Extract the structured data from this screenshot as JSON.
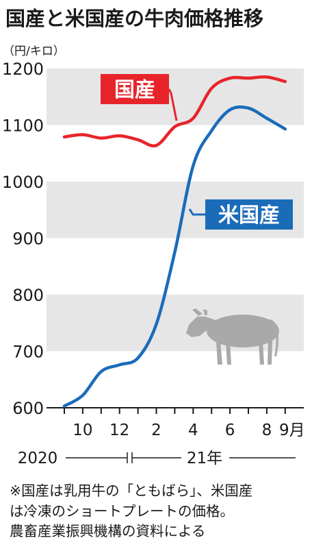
{
  "chart_data": {
    "type": "line",
    "title": "国産と米国産の牛肉価格推移",
    "unit_label": "（円/キロ）",
    "ylim": [
      600,
      1200
    ],
    "y_ticks": [
      600,
      700,
      800,
      900,
      1000,
      1100,
      1200
    ],
    "y_tick_labels": [
      "600",
      "700",
      "800",
      "900",
      "1000",
      "1100",
      "1200"
    ],
    "grid": "alternating horizontal bands",
    "x": [
      "2020-09",
      "2020-10",
      "2020-11",
      "2020-12",
      "2021-01",
      "2021-02",
      "2021-03",
      "2021-04",
      "2021-05",
      "2021-06",
      "2021-07",
      "2021-08",
      "2021-09"
    ],
    "x_tick_labels": [
      {
        "at": "2020-10",
        "label": "10"
      },
      {
        "at": "2020-12",
        "label": "12"
      },
      {
        "at": "2021-02",
        "label": "2"
      },
      {
        "at": "2021-04",
        "label": "4"
      },
      {
        "at": "2021-06",
        "label": "6"
      },
      {
        "at": "2021-08",
        "label": "8"
      },
      {
        "at": "2021-09",
        "label": "9月"
      }
    ],
    "year_labels": [
      "2020",
      "21年"
    ],
    "series": [
      {
        "name": "国産",
        "color": "#e8242b",
        "values": [
          1079,
          1083,
          1077,
          1081,
          1074,
          1064,
          1097,
          1112,
          1165,
          1183,
          1183,
          1185,
          1177
        ]
      },
      {
        "name": "米国産",
        "color": "#1a6cb9",
        "values": [
          603,
          622,
          664,
          676,
          688,
          748,
          875,
          1028,
          1090,
          1127,
          1130,
          1112,
          1093
        ]
      }
    ],
    "footnote": [
      "※国産は乳用牛の「ともばら」、米国産",
      "は冷凍のショートプレートの価格。",
      "農畜産業振興機構の資料による"
    ]
  }
}
